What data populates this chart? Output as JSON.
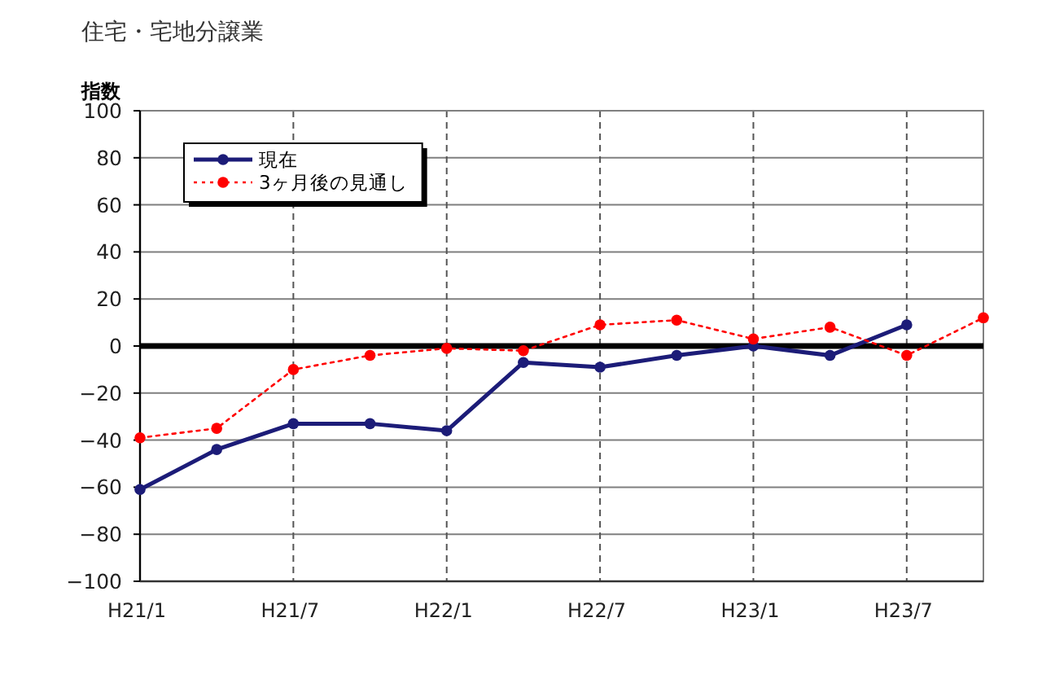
{
  "chart_data": {
    "type": "line",
    "title": "住宅・宅地分譲業",
    "ylabel": "指数",
    "categories": [
      "H21/1",
      null,
      "H21/7",
      null,
      "H22/1",
      null,
      "H22/7",
      null,
      "H23/1",
      null,
      "H23/7",
      null
    ],
    "series": [
      {
        "name": "現在",
        "color": "#1c1c78",
        "values": [
          -61,
          -44,
          -33,
          -33,
          -36,
          -7,
          -9,
          -4,
          0,
          -4,
          9,
          null
        ],
        "line_style": "solid"
      },
      {
        "name": "3ヶ月後の見通し",
        "color": "#ff0000",
        "values": [
          -39,
          -35,
          -10,
          -4,
          -1,
          -2,
          9,
          11,
          3,
          8,
          -4,
          12
        ],
        "line_style": "dotted"
      }
    ],
    "ylim": [
      -100,
      100
    ],
    "yticks": [
      -100,
      -80,
      -60,
      -40,
      -20,
      0,
      20,
      40,
      60,
      80,
      100
    ],
    "grid": true,
    "legend": "top left",
    "marker": "circle",
    "ref_lines": [
      {
        "axis": "y",
        "value": 0,
        "color": "#000000"
      }
    ]
  }
}
